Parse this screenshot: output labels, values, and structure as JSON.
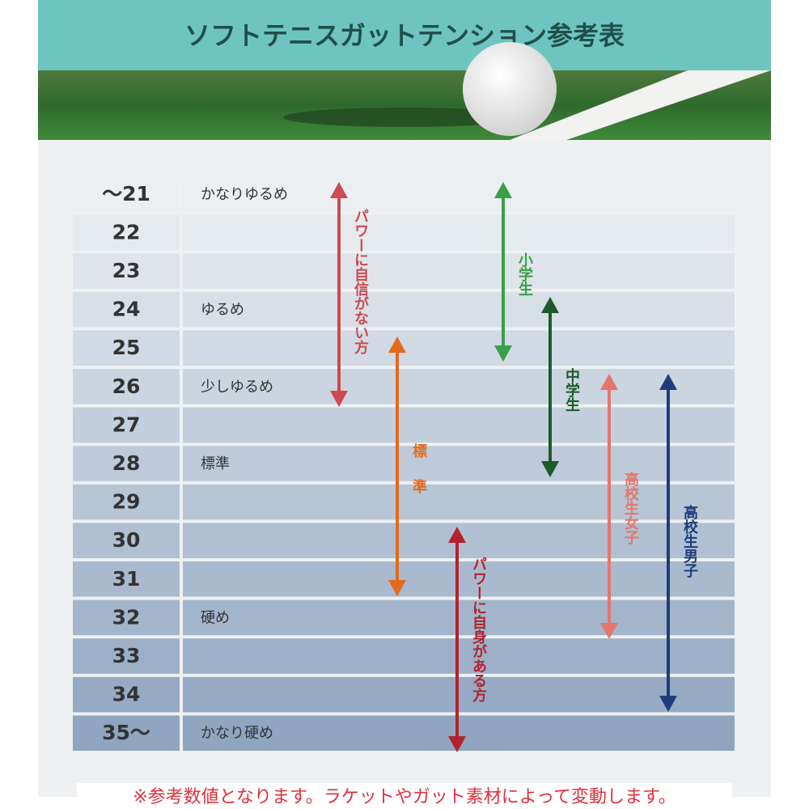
{
  "header": {
    "title": "ソフトテニスガットテンション参考表"
  },
  "table": {
    "rows": [
      {
        "tension": "～21",
        "description": "かなりゆるめ"
      },
      {
        "tension": "22"
      },
      {
        "tension": "23"
      },
      {
        "tension": "24",
        "description": "ゆるめ"
      },
      {
        "tension": "25"
      },
      {
        "tension": "26",
        "description": "少しゆるめ"
      },
      {
        "tension": "27"
      },
      {
        "tension": "28",
        "description": "標準"
      },
      {
        "tension": "29"
      },
      {
        "tension": "30"
      },
      {
        "tension": "31"
      },
      {
        "tension": "32",
        "description": "硬め"
      },
      {
        "tension": "33"
      },
      {
        "tension": "34"
      },
      {
        "tension": "35～",
        "description": "かなり硬め"
      }
    ]
  },
  "arrows": [
    {
      "label": "パワーに自信がない方",
      "color": "#cc4a50"
    },
    {
      "label": "小学生",
      "color": "#3a9f48"
    },
    {
      "label": "中学生",
      "color": "#1d5a2c"
    },
    {
      "label": "標準",
      "color": "#e4691f"
    },
    {
      "label": "パワーに自身がある方",
      "color": "#b3222e"
    },
    {
      "label": "高校生女子",
      "color": "#e5766b"
    },
    {
      "label": "高校生男子",
      "color": "#1f3d7c"
    }
  ],
  "footnote": "※参考数値となります。ラケットやガット素材によって変動します。"
}
